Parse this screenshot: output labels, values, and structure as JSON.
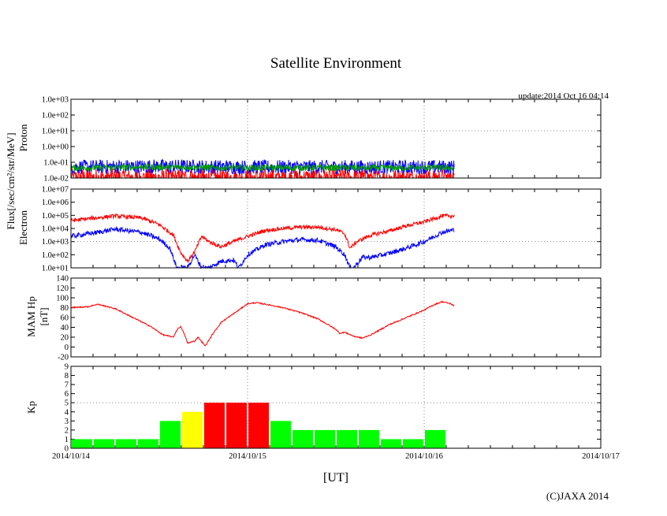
{
  "chart_data": {
    "title": "Satellite Environment",
    "update_text": "update:2014 Oct 16 04:14",
    "copyright": "(C)JAXA 2014",
    "xlabel": "[UT]",
    "flux_label": "Flux[/sec/cm²/str/MeV]",
    "x_range_days": [
      0,
      3
    ],
    "x_tick_labels": [
      "2014/10/14",
      "2014/10/15",
      "2014/10/16",
      "2014/10/17"
    ],
    "colors": {
      "red": "#ff0000",
      "blue": "#0000ff",
      "green": "#00a000",
      "yellow": "#ffff00",
      "kp_green": "#00ff00",
      "grid": "#888888"
    },
    "panels": [
      {
        "id": "proton",
        "type": "line",
        "scale": "log",
        "ylabel": "Proton",
        "ylim_exp": [
          -2,
          3
        ],
        "y_tick_labels": [
          "1.0e-02",
          "1.0e-01",
          "1.0e+00",
          "1.0e+01",
          "1.0e+02",
          "1.0e+03"
        ],
        "noise": true,
        "series": [
          {
            "name": "proton-red",
            "color": "#ff0000",
            "amp": 0.6,
            "x": [
              0,
              0.5,
              1.0,
              1.5,
              2.0,
              2.17
            ],
            "y_exp": [
              -2.0,
              -2.0,
              -2.0,
              -2.0,
              -2.0,
              -2.0
            ]
          },
          {
            "name": "proton-blue",
            "color": "#0000ff",
            "amp": 0.45,
            "x": [
              0,
              0.5,
              1.0,
              1.5,
              2.0,
              2.17
            ],
            "y_exp": [
              -1.3,
              -1.25,
              -1.3,
              -1.3,
              -1.3,
              -1.3
            ]
          },
          {
            "name": "proton-green",
            "color": "#00a000",
            "amp": 0.2,
            "x": [
              0,
              0.5,
              1.0,
              1.5,
              2.0,
              2.17
            ],
            "y_exp": [
              -1.35,
              -1.3,
              -1.35,
              -1.35,
              -1.35,
              -1.35
            ]
          }
        ]
      },
      {
        "id": "electron",
        "type": "line",
        "scale": "log",
        "ylabel": "Electron",
        "ylim_exp": [
          1,
          7
        ],
        "y_tick_labels": [
          "1.0e+01",
          "1.0e+02",
          "1.0e+03",
          "1.0e+04",
          "1.0e+05",
          "1.0e+06",
          "1.0e+07"
        ],
        "noise": true,
        "series": [
          {
            "name": "electron-red",
            "color": "#ff0000",
            "amp": 0.15,
            "x": [
              0,
              0.1,
              0.25,
              0.4,
              0.5,
              0.58,
              0.62,
              0.66,
              0.7,
              0.74,
              0.78,
              0.85,
              0.92,
              1.0,
              1.1,
              1.2,
              1.3,
              1.4,
              1.5,
              1.55,
              1.58,
              1.62,
              1.65,
              1.7,
              1.8,
              1.9,
              2.0,
              2.1,
              2.17
            ],
            "y_exp": [
              4.6,
              4.75,
              4.95,
              4.8,
              4.3,
              3.5,
              2.2,
              1.5,
              2.2,
              3.4,
              3.0,
              2.6,
              3.0,
              3.4,
              3.85,
              4.0,
              4.1,
              4.1,
              3.9,
              3.6,
              2.5,
              3.0,
              3.2,
              3.5,
              3.8,
              4.2,
              4.5,
              4.95,
              4.95
            ]
          },
          {
            "name": "electron-blue",
            "color": "#0000ff",
            "amp": 0.18,
            "x": [
              0,
              0.15,
              0.25,
              0.4,
              0.5,
              0.56,
              0.6,
              0.62,
              0.66,
              0.7,
              0.74,
              0.78,
              0.85,
              0.92,
              0.95,
              1.0,
              1.1,
              1.2,
              1.3,
              1.4,
              1.5,
              1.55,
              1.58,
              1.6,
              1.65,
              1.7,
              1.8,
              1.9,
              2.0,
              2.1,
              2.17
            ],
            "y_exp": [
              3.4,
              3.7,
              3.95,
              3.7,
              3.2,
              2.5,
              1.0,
              1.0,
              1.0,
              2.0,
              1.0,
              1.0,
              1.5,
              1.6,
              1.0,
              2.0,
              2.75,
              3.0,
              3.15,
              3.1,
              2.6,
              2.0,
              1.0,
              1.0,
              1.8,
              1.8,
              2.1,
              2.5,
              3.0,
              3.7,
              3.9
            ]
          }
        ]
      },
      {
        "id": "mam",
        "type": "line",
        "scale": "linear",
        "ylabel": "MAM Hp",
        "ylabel2": "[nT]",
        "ylim": [
          -20,
          140
        ],
        "y_tick_labels": [
          "-20",
          "0",
          "20",
          "40",
          "60",
          "80",
          "100",
          "120",
          "140"
        ],
        "noise": true,
        "series": [
          {
            "name": "mam-hp",
            "color": "#ff0000",
            "amp": 1.2,
            "x": [
              0,
              0.1,
              0.15,
              0.25,
              0.35,
              0.45,
              0.52,
              0.58,
              0.6,
              0.62,
              0.64,
              0.66,
              0.7,
              0.72,
              0.76,
              0.8,
              0.85,
              0.95,
              1.0,
              1.05,
              1.1,
              1.2,
              1.3,
              1.4,
              1.5,
              1.52,
              1.55,
              1.6,
              1.65,
              1.7,
              1.8,
              1.9,
              2.0,
              2.05,
              2.1,
              2.15,
              2.17
            ],
            "y": [
              80,
              82,
              87,
              78,
              60,
              42,
              25,
              20,
              35,
              42,
              28,
              8,
              12,
              20,
              2,
              25,
              50,
              75,
              88,
              90,
              87,
              80,
              70,
              57,
              36,
              28,
              30,
              22,
              18,
              25,
              45,
              60,
              75,
              85,
              92,
              88,
              83
            ]
          }
        ]
      },
      {
        "id": "kp",
        "type": "bar",
        "scale": "linear",
        "ylabel": "Kp",
        "ylim": [
          0,
          9
        ],
        "y_tick_labels": [
          "0",
          "1",
          "2",
          "3",
          "4",
          "5",
          "6",
          "7",
          "8",
          "9"
        ],
        "bar_width_days": 0.125,
        "values": [
          1,
          1,
          1,
          1,
          3,
          4,
          5,
          5,
          5,
          3,
          2,
          2,
          2,
          2,
          1,
          1,
          2
        ],
        "bar_colors": [
          "#00ff00",
          "#00ff00",
          "#00ff00",
          "#00ff00",
          "#00ff00",
          "#ffff00",
          "#ff0000",
          "#ff0000",
          "#ff0000",
          "#00ff00",
          "#00ff00",
          "#00ff00",
          "#00ff00",
          "#00ff00",
          "#00ff00",
          "#00ff00",
          "#00ff00"
        ]
      }
    ]
  }
}
